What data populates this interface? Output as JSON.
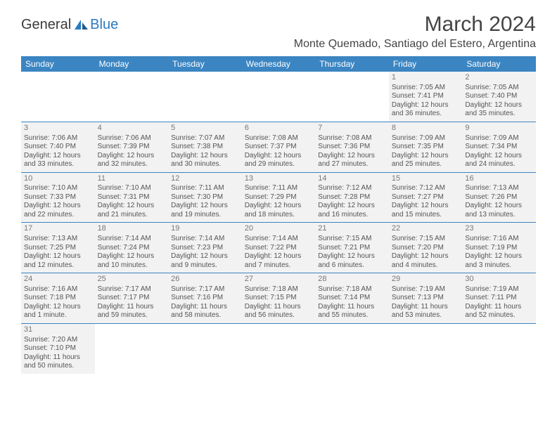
{
  "logo": {
    "text1": "General",
    "text2": "Blue"
  },
  "title": "March 2024",
  "location": "Monte Quemado, Santiago del Estero, Argentina",
  "colors": {
    "header_bg": "#3b85c2",
    "cell_bg": "#f2f2f2",
    "divider": "#3b85c2"
  },
  "dayNames": [
    "Sunday",
    "Monday",
    "Tuesday",
    "Wednesday",
    "Thursday",
    "Friday",
    "Saturday"
  ],
  "weeks": [
    [
      null,
      null,
      null,
      null,
      null,
      {
        "n": "1",
        "rise": "Sunrise: 7:05 AM",
        "set": "Sunset: 7:41 PM",
        "d1": "Daylight: 12 hours",
        "d2": "and 36 minutes."
      },
      {
        "n": "2",
        "rise": "Sunrise: 7:05 AM",
        "set": "Sunset: 7:40 PM",
        "d1": "Daylight: 12 hours",
        "d2": "and 35 minutes."
      }
    ],
    [
      {
        "n": "3",
        "rise": "Sunrise: 7:06 AM",
        "set": "Sunset: 7:40 PM",
        "d1": "Daylight: 12 hours",
        "d2": "and 33 minutes."
      },
      {
        "n": "4",
        "rise": "Sunrise: 7:06 AM",
        "set": "Sunset: 7:39 PM",
        "d1": "Daylight: 12 hours",
        "d2": "and 32 minutes."
      },
      {
        "n": "5",
        "rise": "Sunrise: 7:07 AM",
        "set": "Sunset: 7:38 PM",
        "d1": "Daylight: 12 hours",
        "d2": "and 30 minutes."
      },
      {
        "n": "6",
        "rise": "Sunrise: 7:08 AM",
        "set": "Sunset: 7:37 PM",
        "d1": "Daylight: 12 hours",
        "d2": "and 29 minutes."
      },
      {
        "n": "7",
        "rise": "Sunrise: 7:08 AM",
        "set": "Sunset: 7:36 PM",
        "d1": "Daylight: 12 hours",
        "d2": "and 27 minutes."
      },
      {
        "n": "8",
        "rise": "Sunrise: 7:09 AM",
        "set": "Sunset: 7:35 PM",
        "d1": "Daylight: 12 hours",
        "d2": "and 25 minutes."
      },
      {
        "n": "9",
        "rise": "Sunrise: 7:09 AM",
        "set": "Sunset: 7:34 PM",
        "d1": "Daylight: 12 hours",
        "d2": "and 24 minutes."
      }
    ],
    [
      {
        "n": "10",
        "rise": "Sunrise: 7:10 AM",
        "set": "Sunset: 7:33 PM",
        "d1": "Daylight: 12 hours",
        "d2": "and 22 minutes."
      },
      {
        "n": "11",
        "rise": "Sunrise: 7:10 AM",
        "set": "Sunset: 7:31 PM",
        "d1": "Daylight: 12 hours",
        "d2": "and 21 minutes."
      },
      {
        "n": "12",
        "rise": "Sunrise: 7:11 AM",
        "set": "Sunset: 7:30 PM",
        "d1": "Daylight: 12 hours",
        "d2": "and 19 minutes."
      },
      {
        "n": "13",
        "rise": "Sunrise: 7:11 AM",
        "set": "Sunset: 7:29 PM",
        "d1": "Daylight: 12 hours",
        "d2": "and 18 minutes."
      },
      {
        "n": "14",
        "rise": "Sunrise: 7:12 AM",
        "set": "Sunset: 7:28 PM",
        "d1": "Daylight: 12 hours",
        "d2": "and 16 minutes."
      },
      {
        "n": "15",
        "rise": "Sunrise: 7:12 AM",
        "set": "Sunset: 7:27 PM",
        "d1": "Daylight: 12 hours",
        "d2": "and 15 minutes."
      },
      {
        "n": "16",
        "rise": "Sunrise: 7:13 AM",
        "set": "Sunset: 7:26 PM",
        "d1": "Daylight: 12 hours",
        "d2": "and 13 minutes."
      }
    ],
    [
      {
        "n": "17",
        "rise": "Sunrise: 7:13 AM",
        "set": "Sunset: 7:25 PM",
        "d1": "Daylight: 12 hours",
        "d2": "and 12 minutes."
      },
      {
        "n": "18",
        "rise": "Sunrise: 7:14 AM",
        "set": "Sunset: 7:24 PM",
        "d1": "Daylight: 12 hours",
        "d2": "and 10 minutes."
      },
      {
        "n": "19",
        "rise": "Sunrise: 7:14 AM",
        "set": "Sunset: 7:23 PM",
        "d1": "Daylight: 12 hours",
        "d2": "and 9 minutes."
      },
      {
        "n": "20",
        "rise": "Sunrise: 7:14 AM",
        "set": "Sunset: 7:22 PM",
        "d1": "Daylight: 12 hours",
        "d2": "and 7 minutes."
      },
      {
        "n": "21",
        "rise": "Sunrise: 7:15 AM",
        "set": "Sunset: 7:21 PM",
        "d1": "Daylight: 12 hours",
        "d2": "and 6 minutes."
      },
      {
        "n": "22",
        "rise": "Sunrise: 7:15 AM",
        "set": "Sunset: 7:20 PM",
        "d1": "Daylight: 12 hours",
        "d2": "and 4 minutes."
      },
      {
        "n": "23",
        "rise": "Sunrise: 7:16 AM",
        "set": "Sunset: 7:19 PM",
        "d1": "Daylight: 12 hours",
        "d2": "and 3 minutes."
      }
    ],
    [
      {
        "n": "24",
        "rise": "Sunrise: 7:16 AM",
        "set": "Sunset: 7:18 PM",
        "d1": "Daylight: 12 hours",
        "d2": "and 1 minute."
      },
      {
        "n": "25",
        "rise": "Sunrise: 7:17 AM",
        "set": "Sunset: 7:17 PM",
        "d1": "Daylight: 11 hours",
        "d2": "and 59 minutes."
      },
      {
        "n": "26",
        "rise": "Sunrise: 7:17 AM",
        "set": "Sunset: 7:16 PM",
        "d1": "Daylight: 11 hours",
        "d2": "and 58 minutes."
      },
      {
        "n": "27",
        "rise": "Sunrise: 7:18 AM",
        "set": "Sunset: 7:15 PM",
        "d1": "Daylight: 11 hours",
        "d2": "and 56 minutes."
      },
      {
        "n": "28",
        "rise": "Sunrise: 7:18 AM",
        "set": "Sunset: 7:14 PM",
        "d1": "Daylight: 11 hours",
        "d2": "and 55 minutes."
      },
      {
        "n": "29",
        "rise": "Sunrise: 7:19 AM",
        "set": "Sunset: 7:13 PM",
        "d1": "Daylight: 11 hours",
        "d2": "and 53 minutes."
      },
      {
        "n": "30",
        "rise": "Sunrise: 7:19 AM",
        "set": "Sunset: 7:11 PM",
        "d1": "Daylight: 11 hours",
        "d2": "and 52 minutes."
      }
    ],
    [
      {
        "n": "31",
        "rise": "Sunrise: 7:20 AM",
        "set": "Sunset: 7:10 PM",
        "d1": "Daylight: 11 hours",
        "d2": "and 50 minutes."
      },
      null,
      null,
      null,
      null,
      null,
      null
    ]
  ]
}
